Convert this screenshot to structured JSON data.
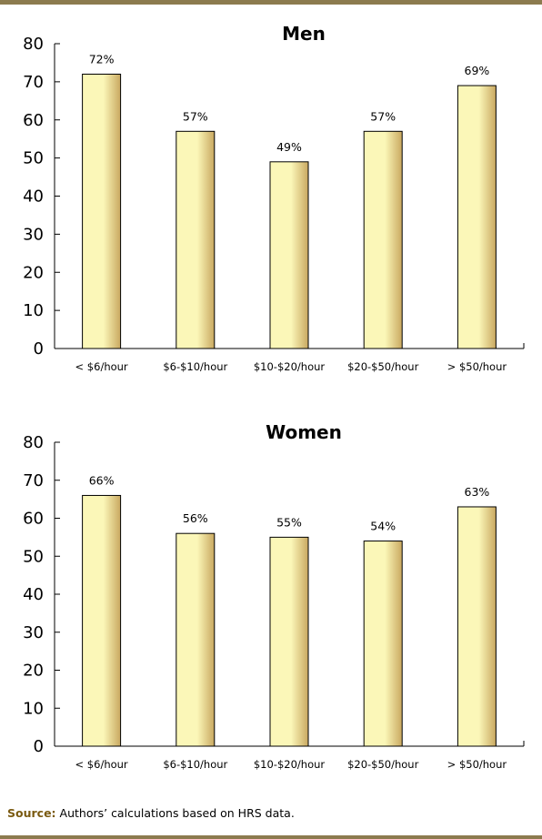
{
  "source": {
    "label": "Source:",
    "text": " Authors’ calculations based on HRS data."
  },
  "chart_data": [
    {
      "type": "bar",
      "title": "Men",
      "categories": [
        "< $6/hour",
        "$6-$10/hour",
        "$10-$20/hour",
        "$20-$50/hour",
        "> $50/hour"
      ],
      "values": [
        72,
        57,
        49,
        57,
        69
      ],
      "data_labels": [
        "72%",
        "57%",
        "49%",
        "57%",
        "69%"
      ],
      "yticks": [
        0,
        10,
        20,
        30,
        40,
        50,
        60,
        70,
        80
      ],
      "ylim": [
        0,
        80
      ],
      "xlabel": "",
      "ylabel": "",
      "grid": false,
      "bar_color_light": "#fbf7b8",
      "bar_color_dark": "#c9a860"
    },
    {
      "type": "bar",
      "title": "Women",
      "categories": [
        "< $6/hour",
        "$6-$10/hour",
        "$10-$20/hour",
        "$20-$50/hour",
        "> $50/hour"
      ],
      "values": [
        66,
        56,
        55,
        54,
        63
      ],
      "data_labels": [
        "66%",
        "56%",
        "55%",
        "54%",
        "63%"
      ],
      "yticks": [
        0,
        10,
        20,
        30,
        40,
        50,
        60,
        70,
        80
      ],
      "ylim": [
        0,
        80
      ],
      "xlabel": "",
      "ylabel": "",
      "grid": false,
      "bar_color_light": "#fbf7b8",
      "bar_color_dark": "#c9a860"
    }
  ]
}
